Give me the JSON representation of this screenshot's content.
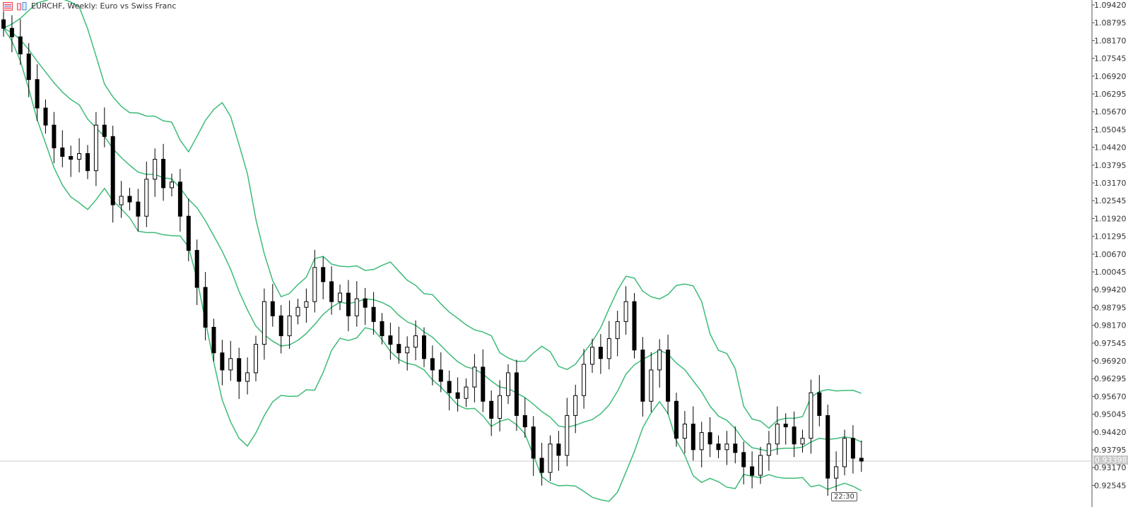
{
  "header": {
    "title": "EURCHF, Weekly:  Euro vs Swiss Franc",
    "icons": [
      "indicator-list-icon",
      "chart-properties-icon"
    ]
  },
  "current_price": "0.93398",
  "time_label": "22:30",
  "colors": {
    "bands": "#3dbb78",
    "candle": "#000000",
    "price_line": "#c8c8c8",
    "axis": "#555555"
  },
  "chart_data": {
    "type": "candlestick",
    "symbol": "EURCHF",
    "timeframe": "Weekly",
    "indicator": "Bollinger Bands",
    "ylim": [
      0.92109,
      1.09594
    ],
    "y_ticks": [
      "1.09420",
      "1.08795",
      "1.08170",
      "1.07545",
      "1.06920",
      "1.06295",
      "1.05670",
      "1.05045",
      "1.04420",
      "1.03795",
      "1.03170",
      "1.02545",
      "1.01920",
      "1.01295",
      "1.00670",
      "1.00045",
      "0.99420",
      "0.98795",
      "0.98170",
      "0.97545",
      "0.96920",
      "0.96295",
      "0.95670",
      "0.95045",
      "0.94420",
      "0.93795",
      "0.93170",
      "0.92545"
    ],
    "close": [
      1.086,
      1.083,
      1.077,
      1.068,
      1.058,
      1.052,
      1.044,
      1.041,
      1.04,
      1.042,
      1.036,
      1.052,
      1.048,
      1.024,
      1.027,
      1.025,
      1.02,
      1.033,
      1.04,
      1.03,
      1.032,
      1.02,
      1.008,
      0.995,
      0.981,
      0.972,
      0.966,
      0.97,
      0.962,
      0.965,
      0.975,
      0.99,
      0.985,
      0.978,
      0.985,
      0.988,
      0.99,
      1.002,
      0.997,
      0.99,
      0.993,
      0.985,
      0.991,
      0.988,
      0.983,
      0.978,
      0.975,
      0.972,
      0.974,
      0.978,
      0.97,
      0.966,
      0.962,
      0.958,
      0.956,
      0.96,
      0.967,
      0.955,
      0.949,
      0.957,
      0.965,
      0.95,
      0.946,
      0.935,
      0.93,
      0.94,
      0.936,
      0.95,
      0.957,
      0.968,
      0.974,
      0.97,
      0.977,
      0.983,
      0.99,
      0.973,
      0.955,
      0.966,
      0.973,
      0.955,
      0.942,
      0.947,
      0.938,
      0.944,
      0.94,
      0.938,
      0.94,
      0.937,
      0.932,
      0.929,
      0.936,
      0.94,
      0.947,
      0.946,
      0.94,
      0.942,
      0.958,
      0.95,
      0.928,
      0.932,
      0.942,
      0.935,
      0.93398
    ]
  }
}
